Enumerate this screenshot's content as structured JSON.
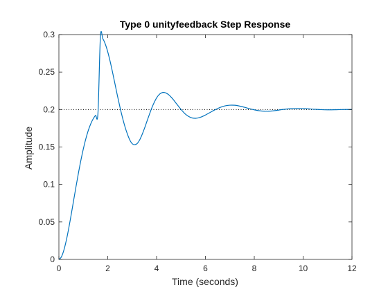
{
  "chart_data": {
    "type": "line",
    "title": "Type 0 unityfeedback Step Response",
    "xlabel": "Time (seconds)",
    "ylabel": "Amplitude",
    "xlim": [
      0,
      12
    ],
    "ylim": [
      0,
      0.3
    ],
    "xticks": [
      0,
      2,
      4,
      6,
      8,
      10,
      12
    ],
    "yticks": [
      0,
      0.05,
      0.1,
      0.15,
      0.2,
      0.25,
      0.3
    ],
    "xtick_labels": [
      "0",
      "2",
      "4",
      "6",
      "8",
      "10",
      "12"
    ],
    "ytick_labels": [
      "0",
      "0.05",
      "0.1",
      "0.15",
      "0.2",
      "0.25",
      "0.3"
    ],
    "grid": false,
    "series": [
      {
        "color": "#0072BD",
        "x": [
          0,
          0.1,
          0.2,
          0.3,
          0.4,
          0.5,
          0.6,
          0.7,
          0.8,
          0.9,
          1.0,
          1.1,
          1.2,
          1.3,
          1.4,
          1.5,
          1.6,
          1.7,
          1.8,
          1.9,
          2.0,
          2.1,
          2.2,
          2.3,
          2.4,
          2.5,
          2.6,
          2.7,
          2.8,
          2.9,
          3.0,
          3.1,
          3.2,
          3.3,
          3.4,
          3.5,
          3.6,
          3.7,
          3.8,
          3.9,
          4.0,
          4.1,
          4.2,
          4.3,
          4.4,
          4.5,
          4.6,
          4.7,
          4.8,
          4.9,
          5.0,
          5.2,
          5.4,
          5.6,
          5.8,
          6.0,
          6.2,
          6.4,
          6.6,
          6.8,
          7.0,
          7.2,
          7.4,
          7.6,
          7.8,
          8.0,
          8.3,
          8.6,
          8.9,
          9.2,
          9.5,
          9.8,
          10.1,
          10.4,
          10.7,
          11.0,
          11.3,
          11.6,
          12.0
        ],
        "y": [
          0,
          0.0032,
          0.0119,
          0.0249,
          0.041,
          0.0591,
          0.0781,
          0.097,
          0.1152,
          0.1321,
          0.1473,
          0.1606,
          0.1717,
          0.1806,
          0.1874,
          0.1922,
          0.1954,
          0.2972,
          0.2944,
          0.2873,
          0.277,
          0.264,
          0.2492,
          0.2336,
          0.218,
          0.2032,
          0.1897,
          0.1777,
          0.1677,
          0.1596,
          0.1545,
          0.153,
          0.1545,
          0.159,
          0.166,
          0.1745,
          0.1838,
          0.193,
          0.2018,
          0.2093,
          0.2155,
          0.2198,
          0.2222,
          0.2228,
          0.2218,
          0.2196,
          0.2164,
          0.2126,
          0.2084,
          0.2042,
          0.2002,
          0.1933,
          0.1893,
          0.1883,
          0.1897,
          0.1927,
          0.1963,
          0.1998,
          0.2028,
          0.2049,
          0.2058,
          0.2057,
          0.2046,
          0.203,
          0.2012,
          0.1996,
          0.198,
          0.1978,
          0.1988,
          0.2002,
          0.2011,
          0.2014,
          0.2011,
          0.2005,
          0.1999,
          0.1996,
          0.1997,
          0.2,
          0.2001
        ]
      }
    ],
    "reference_line": {
      "y": 0.2,
      "style": "dotted",
      "color": "#000000"
    }
  }
}
